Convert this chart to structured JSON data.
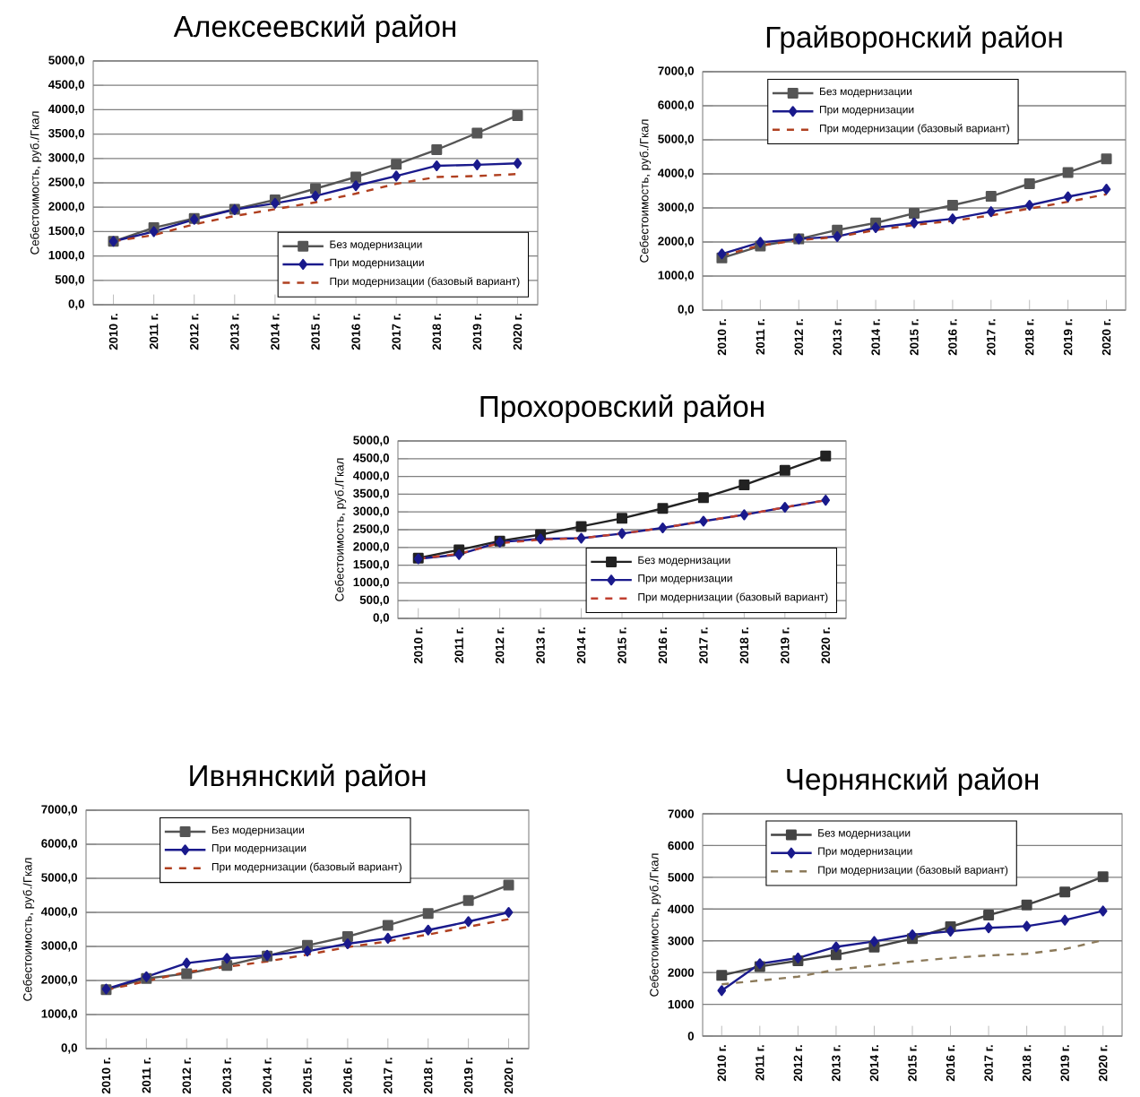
{
  "chart_data": [
    {
      "type": "line",
      "title": "Алексеевский район",
      "ylabel": "Себестоимость, руб./Гкал",
      "categories": [
        "2010 г.",
        "2011 г.",
        "2012 г.",
        "2013 г.",
        "2014 г.",
        "2015 г.",
        "2016 г.",
        "2017 г.",
        "2018 г.",
        "2019 г.",
        "2020 г."
      ],
      "ylim": [
        0,
        5000
      ],
      "yticks": [
        {
          "value": 0,
          "label": "0,0"
        },
        {
          "value": 500,
          "label": "500,0"
        },
        {
          "value": 1000,
          "label": "1000,0"
        },
        {
          "value": 1500,
          "label": "1500,0"
        },
        {
          "value": 2000,
          "label": "2000,0"
        },
        {
          "value": 2500,
          "label": "2500,0"
        },
        {
          "value": 3000,
          "label": "3000,0"
        },
        {
          "value": 3500,
          "label": "3500,0"
        },
        {
          "value": 4000,
          "label": "4000,0"
        },
        {
          "value": 4500,
          "label": "4500,0"
        },
        {
          "value": 5000,
          "label": "5000,0"
        }
      ],
      "grid": "y",
      "legend": "bottom right",
      "series": [
        {
          "name": "Без модернизации",
          "color": "#555555",
          "marker": "square",
          "line_style": "solid",
          "values": [
            1300,
            1580,
            1770,
            1960,
            2150,
            2380,
            2620,
            2880,
            3180,
            3520,
            3880
          ]
        },
        {
          "name": "При модернизации",
          "color": "#1a1a8c",
          "marker": "diamond",
          "line_style": "solid",
          "values": [
            1300,
            1500,
            1750,
            1950,
            2080,
            2230,
            2440,
            2640,
            2850,
            2870,
            2900
          ]
        },
        {
          "name": "При модернизации (базовый вариант)",
          "color": "#b04020",
          "marker": "none",
          "line_style": "dashed",
          "values": [
            1300,
            1430,
            1650,
            1820,
            1960,
            2100,
            2280,
            2480,
            2620,
            2640,
            2680
          ]
        }
      ]
    },
    {
      "type": "line",
      "title": "Грайворонский район",
      "ylabel": "Себестоимость, руб./Гкал",
      "categories": [
        "2010 г.",
        "2011 г.",
        "2012 г.",
        "2013 г.",
        "2014 г.",
        "2015 г.",
        "2016 г.",
        "2017 г.",
        "2018 г.",
        "2019 г.",
        "2020 г."
      ],
      "ylim": [
        0,
        7000
      ],
      "yticks": [
        {
          "value": 0,
          "label": "0,0"
        },
        {
          "value": 1000,
          "label": "1000,0"
        },
        {
          "value": 2000,
          "label": "2000,0"
        },
        {
          "value": 3000,
          "label": "3000,0"
        },
        {
          "value": 4000,
          "label": "4000,0"
        },
        {
          "value": 5000,
          "label": "5000,0"
        },
        {
          "value": 6000,
          "label": "6000,0"
        },
        {
          "value": 7000,
          "label": "7000,0"
        }
      ],
      "grid": "y",
      "legend": "top",
      "series": [
        {
          "name": "Без модернизации",
          "color": "#555555",
          "marker": "square",
          "line_style": "solid",
          "values": [
            1530,
            1880,
            2090,
            2350,
            2560,
            2840,
            3080,
            3340,
            3710,
            4040,
            4440
          ]
        },
        {
          "name": "При модернизации",
          "color": "#1a1a8c",
          "marker": "diamond",
          "line_style": "solid",
          "values": [
            1650,
            1990,
            2090,
            2160,
            2420,
            2560,
            2680,
            2890,
            3080,
            3330,
            3550
          ]
        },
        {
          "name": "При модернизации (базовый вариант)",
          "color": "#b04020",
          "marker": "none",
          "line_style": "dashed",
          "values": [
            1600,
            1900,
            2050,
            2150,
            2350,
            2500,
            2620,
            2780,
            2980,
            3180,
            3400
          ]
        }
      ]
    },
    {
      "type": "line",
      "title": "Прохоровский район",
      "ylabel": "Себестоимость, руб./Гкал",
      "categories": [
        "2010 г.",
        "2011 г.",
        "2012 г.",
        "2013 г.",
        "2014 г.",
        "2015 г.",
        "2016 г.",
        "2017 г.",
        "2018 г.",
        "2019 г.",
        "2020 г."
      ],
      "ylim": [
        0,
        5000
      ],
      "yticks": [
        {
          "value": 0,
          "label": "0,0"
        },
        {
          "value": 500,
          "label": "500,0"
        },
        {
          "value": 1000,
          "label": "1000,0"
        },
        {
          "value": 1500,
          "label": "1500,0"
        },
        {
          "value": 2000,
          "label": "2000,0"
        },
        {
          "value": 2500,
          "label": "2500,0"
        },
        {
          "value": 3000,
          "label": "3000,0"
        },
        {
          "value": 3500,
          "label": "3500,0"
        },
        {
          "value": 4000,
          "label": "4000,0"
        },
        {
          "value": 4500,
          "label": "4500,0"
        },
        {
          "value": 5000,
          "label": "5000,0"
        }
      ],
      "grid": "y",
      "legend": "bottom right",
      "series": [
        {
          "name": "Без модернизации",
          "color": "#222222",
          "marker": "square",
          "line_style": "solid",
          "values": [
            1700,
            1930,
            2180,
            2360,
            2590,
            2820,
            3100,
            3400,
            3760,
            4170,
            4580
          ]
        },
        {
          "name": "При модернизации",
          "color": "#1a1a8c",
          "marker": "diamond",
          "line_style": "solid",
          "values": [
            1680,
            1800,
            2150,
            2240,
            2260,
            2390,
            2550,
            2740,
            2920,
            3130,
            3330
          ]
        },
        {
          "name": "При модернизации (базовый вариант)",
          "color": "#c04030",
          "marker": "none",
          "line_style": "dashed",
          "values": [
            1680,
            1820,
            2120,
            2220,
            2260,
            2390,
            2550,
            2740,
            2920,
            3130,
            3330
          ]
        }
      ]
    },
    {
      "type": "line",
      "title": "Ивнянский район",
      "ylabel": "Себестоимость, руб./Гкал",
      "categories": [
        "2010 г.",
        "2011 г.",
        "2012 г.",
        "2013 г.",
        "2014 г.",
        "2015 г.",
        "2016 г.",
        "2017 г.",
        "2018 г.",
        "2019 г.",
        "2020 г."
      ],
      "ylim": [
        0,
        7000
      ],
      "yticks": [
        {
          "value": 0,
          "label": "0,0"
        },
        {
          "value": 1000,
          "label": "1000,0"
        },
        {
          "value": 2000,
          "label": "2000,0"
        },
        {
          "value": 3000,
          "label": "3000,0"
        },
        {
          "value": 4000,
          "label": "4000,0"
        },
        {
          "value": 5000,
          "label": "5000,0"
        },
        {
          "value": 6000,
          "label": "6000,0"
        },
        {
          "value": 7000,
          "label": "7000,0"
        }
      ],
      "grid": "y",
      "legend": "top",
      "series": [
        {
          "name": "Без модернизации",
          "color": "#555555",
          "marker": "square",
          "line_style": "solid",
          "values": [
            1730,
            2060,
            2200,
            2440,
            2720,
            3030,
            3290,
            3620,
            3970,
            4350,
            4800
          ]
        },
        {
          "name": "При модернизации",
          "color": "#1a1a8c",
          "marker": "diamond",
          "line_style": "solid",
          "values": [
            1750,
            2110,
            2510,
            2650,
            2740,
            2860,
            3080,
            3240,
            3480,
            3730,
            4000
          ]
        },
        {
          "name": "При модернизации (базовый вариант)",
          "color": "#b04020",
          "marker": "none",
          "line_style": "dashed",
          "values": [
            1720,
            1980,
            2250,
            2400,
            2560,
            2760,
            2980,
            3150,
            3350,
            3580,
            3800
          ]
        }
      ]
    },
    {
      "type": "line",
      "title": "Чернянский район",
      "ylabel": "Себестоимость, руб./Гкал",
      "categories": [
        "2010 г.",
        "2011 г.",
        "2012 г.",
        "2013 г.",
        "2014 г.",
        "2015 г.",
        "2016 г.",
        "2017 г.",
        "2018 г.",
        "2019 г.",
        "2020 г."
      ],
      "ylim": [
        0,
        7000
      ],
      "yticks": [
        0,
        1000,
        2000,
        3000,
        4000,
        5000,
        6000,
        7000
      ],
      "grid": "y",
      "legend": "top",
      "series": [
        {
          "name": "Без модернизации",
          "color": "#444444",
          "marker": "square",
          "line_style": "solid",
          "values": [
            1910,
            2190,
            2370,
            2560,
            2800,
            3070,
            3440,
            3810,
            4130,
            4540,
            5020
          ]
        },
        {
          "name": "При модернизации",
          "color": "#1a1a8c",
          "marker": "diamond",
          "line_style": "solid",
          "values": [
            1430,
            2280,
            2460,
            2810,
            2980,
            3190,
            3300,
            3410,
            3460,
            3650,
            3940
          ]
        },
        {
          "name": "При модернизации (базовый вариант)",
          "color": "#8c7a5a",
          "marker": "none",
          "line_style": "dashed",
          "values": [
            1630,
            1750,
            1870,
            2090,
            2220,
            2350,
            2460,
            2540,
            2590,
            2740,
            3020
          ]
        }
      ]
    }
  ]
}
